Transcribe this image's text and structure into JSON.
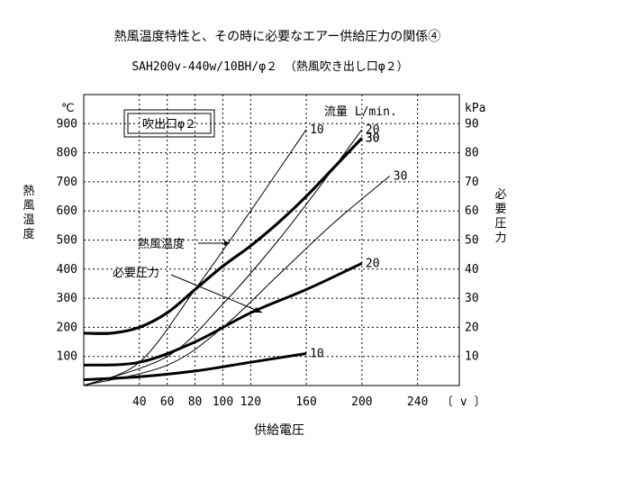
{
  "chart_data": {
    "type": "line",
    "title": "熱風温度特性と、その時に必要なエアー供給圧力の関係④",
    "subtitle": "SAH200v-440w/10BH/φ２ （熱風吹き出し口φ２）",
    "nozzle_label": "吹出口φ２",
    "flow_header": "流量 L/min.",
    "xlabel": "供給電圧",
    "x_unit": "〔 v 〕",
    "x_ticks": [
      40,
      60,
      80,
      100,
      120,
      160,
      200,
      240
    ],
    "x_tick_labels": [
      "40",
      "60",
      "80",
      "100",
      "120",
      "160",
      "200",
      "240"
    ],
    "xlim": [
      0,
      270
    ],
    "ylabel_left": "熱風温度",
    "ylabel_right": "必要圧力",
    "y_unit_left": "℃",
    "y_unit_right": "kPa",
    "left_axis": {
      "lim": [
        0,
        1000
      ],
      "ticks": [
        100,
        200,
        300,
        400,
        500,
        600,
        700,
        800,
        900
      ]
    },
    "right_axis": {
      "lim": [
        0,
        100
      ],
      "ticks": [
        10,
        20,
        30,
        40,
        50,
        60,
        70,
        80,
        90
      ]
    },
    "grid": true,
    "annotations": [
      {
        "text": "熱風温度",
        "points_to": "heat-temperature"
      },
      {
        "text": "必要圧力",
        "points_to": "required-pressure"
      }
    ],
    "series": [
      {
        "name": "10",
        "group": "temperature",
        "axis": "left",
        "weight": "thin",
        "x": [
          0,
          40,
          80,
          120,
          160
        ],
        "y": [
          0,
          80,
          330,
          600,
          880
        ]
      },
      {
        "name": "20",
        "group": "temperature",
        "axis": "left",
        "weight": "thin",
        "x": [
          0,
          60,
          100,
          140,
          180,
          200
        ],
        "y": [
          0,
          100,
          280,
          500,
          750,
          880
        ]
      },
      {
        "name": "30",
        "group": "temperature",
        "axis": "left",
        "weight": "thin",
        "x": [
          0,
          60,
          100,
          140,
          180,
          220
        ],
        "y": [
          0,
          70,
          200,
          380,
          560,
          720
        ]
      },
      {
        "name": "30",
        "group": "temperature",
        "axis": "left",
        "weight": "bold",
        "x": [
          0,
          20,
          40,
          60,
          80,
          100,
          120,
          140,
          160,
          180,
          200
        ],
        "y": [
          180,
          180,
          200,
          250,
          330,
          410,
          480,
          560,
          650,
          750,
          850
        ]
      },
      {
        "name": "10",
        "group": "pressure",
        "axis": "right",
        "weight": "bold",
        "x": [
          0,
          40,
          80,
          120,
          160
        ],
        "y": [
          2,
          3,
          5,
          8,
          11
        ]
      },
      {
        "name": "20",
        "group": "pressure",
        "axis": "right",
        "weight": "bold",
        "x": [
          0,
          40,
          80,
          120,
          160,
          200
        ],
        "y": [
          7,
          8,
          15,
          25,
          33,
          42
        ]
      },
      {
        "name": "30",
        "group": "pressure",
        "axis": "right",
        "weight": "bold",
        "x": [
          0,
          20,
          40,
          60,
          80,
          100,
          120,
          140,
          160,
          180,
          200
        ],
        "y": [
          18,
          18,
          20,
          25,
          33,
          41,
          48,
          56,
          65,
          75,
          85
        ]
      }
    ]
  }
}
